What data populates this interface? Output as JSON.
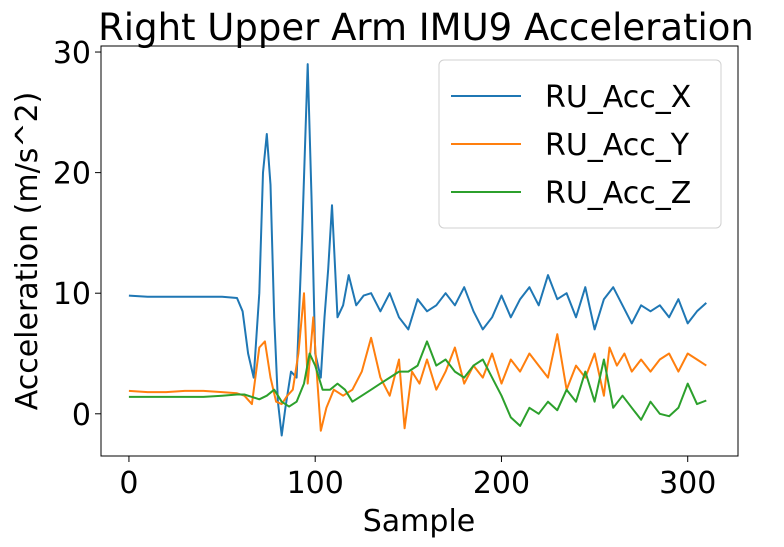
{
  "chart_data": {
    "type": "line",
    "title": "Right Upper Arm IMU9 Acceleration",
    "xlabel": "Sample",
    "ylabel": "Acceleration (m/s^2)",
    "xlim": [
      -15,
      327
    ],
    "ylim": [
      -3.5,
      30.5
    ],
    "xticks": [
      0,
      100,
      200,
      300
    ],
    "yticks": [
      0,
      10,
      20,
      30
    ],
    "grid": false,
    "legend_position": "top-right",
    "series": [
      {
        "name": "RU_Acc_X",
        "color": "#1f77b4",
        "points": [
          [
            0,
            9.8
          ],
          [
            10,
            9.7
          ],
          [
            20,
            9.7
          ],
          [
            30,
            9.7
          ],
          [
            40,
            9.7
          ],
          [
            50,
            9.7
          ],
          [
            58,
            9.6
          ],
          [
            61,
            8.5
          ],
          [
            64,
            5.0
          ],
          [
            67,
            3.0
          ],
          [
            70,
            10.0
          ],
          [
            72,
            20.0
          ],
          [
            74,
            23.2
          ],
          [
            76,
            19.0
          ],
          [
            78,
            8.0
          ],
          [
            80,
            1.0
          ],
          [
            82,
            -1.8
          ],
          [
            84,
            0.5
          ],
          [
            87,
            3.5
          ],
          [
            90,
            3.0
          ],
          [
            93,
            15.0
          ],
          [
            96,
            29.0
          ],
          [
            98,
            18.0
          ],
          [
            100,
            5.0
          ],
          [
            103,
            3.0
          ],
          [
            105,
            8.0
          ],
          [
            107,
            12.0
          ],
          [
            109,
            17.3
          ],
          [
            112,
            8.0
          ],
          [
            115,
            9.0
          ],
          [
            118,
            11.5
          ],
          [
            122,
            9.0
          ],
          [
            126,
            9.8
          ],
          [
            130,
            10.0
          ],
          [
            135,
            8.5
          ],
          [
            140,
            10.0
          ],
          [
            145,
            8.0
          ],
          [
            150,
            7.0
          ],
          [
            155,
            9.5
          ],
          [
            160,
            8.5
          ],
          [
            165,
            9.0
          ],
          [
            170,
            10.0
          ],
          [
            175,
            9.0
          ],
          [
            180,
            10.5
          ],
          [
            185,
            8.5
          ],
          [
            190,
            7.0
          ],
          [
            195,
            8.0
          ],
          [
            200,
            9.8
          ],
          [
            205,
            8.0
          ],
          [
            210,
            9.5
          ],
          [
            215,
            10.5
          ],
          [
            220,
            9.0
          ],
          [
            225,
            11.5
          ],
          [
            230,
            9.5
          ],
          [
            235,
            10.0
          ],
          [
            240,
            8.0
          ],
          [
            245,
            10.5
          ],
          [
            250,
            7.0
          ],
          [
            255,
            9.5
          ],
          [
            260,
            10.5
          ],
          [
            265,
            9.0
          ],
          [
            270,
            7.5
          ],
          [
            275,
            9.0
          ],
          [
            280,
            8.5
          ],
          [
            285,
            9.0
          ],
          [
            290,
            8.0
          ],
          [
            295,
            9.5
          ],
          [
            300,
            7.5
          ],
          [
            305,
            8.5
          ],
          [
            310,
            9.2
          ]
        ]
      },
      {
        "name": "RU_Acc_Y",
        "color": "#ff7f0e",
        "points": [
          [
            0,
            1.9
          ],
          [
            10,
            1.8
          ],
          [
            20,
            1.8
          ],
          [
            30,
            1.9
          ],
          [
            40,
            1.9
          ],
          [
            50,
            1.8
          ],
          [
            58,
            1.7
          ],
          [
            62,
            1.5
          ],
          [
            66,
            0.8
          ],
          [
            70,
            5.5
          ],
          [
            73,
            6.0
          ],
          [
            76,
            3.0
          ],
          [
            79,
            1.0
          ],
          [
            82,
            0.8
          ],
          [
            85,
            1.5
          ],
          [
            88,
            2.0
          ],
          [
            91,
            5.0
          ],
          [
            94,
            10.0
          ],
          [
            96,
            2.5
          ],
          [
            99,
            8.0
          ],
          [
            101,
            3.0
          ],
          [
            103,
            -1.4
          ],
          [
            106,
            0.5
          ],
          [
            110,
            2.0
          ],
          [
            115,
            1.5
          ],
          [
            120,
            2.0
          ],
          [
            125,
            3.5
          ],
          [
            130,
            6.3
          ],
          [
            135,
            3.0
          ],
          [
            140,
            1.5
          ],
          [
            145,
            4.5
          ],
          [
            148,
            -1.2
          ],
          [
            152,
            3.5
          ],
          [
            156,
            2.5
          ],
          [
            160,
            4.5
          ],
          [
            165,
            2.0
          ],
          [
            170,
            3.5
          ],
          [
            175,
            5.5
          ],
          [
            180,
            2.5
          ],
          [
            185,
            4.0
          ],
          [
            190,
            3.0
          ],
          [
            195,
            5.0
          ],
          [
            200,
            2.5
          ],
          [
            205,
            4.5
          ],
          [
            210,
            3.5
          ],
          [
            215,
            5.0
          ],
          [
            220,
            4.0
          ],
          [
            225,
            3.0
          ],
          [
            230,
            6.6
          ],
          [
            235,
            2.0
          ],
          [
            240,
            4.0
          ],
          [
            245,
            3.0
          ],
          [
            250,
            5.0
          ],
          [
            255,
            1.5
          ],
          [
            258,
            5.5
          ],
          [
            262,
            4.0
          ],
          [
            266,
            5.0
          ],
          [
            270,
            3.5
          ],
          [
            275,
            4.5
          ],
          [
            280,
            3.5
          ],
          [
            285,
            4.5
          ],
          [
            290,
            5.0
          ],
          [
            295,
            3.5
          ],
          [
            300,
            5.0
          ],
          [
            305,
            4.5
          ],
          [
            310,
            4.0
          ]
        ]
      },
      {
        "name": "RU_Acc_Z",
        "color": "#2ca02c",
        "points": [
          [
            0,
            1.4
          ],
          [
            10,
            1.4
          ],
          [
            20,
            1.4
          ],
          [
            30,
            1.4
          ],
          [
            40,
            1.4
          ],
          [
            50,
            1.5
          ],
          [
            58,
            1.6
          ],
          [
            62,
            1.6
          ],
          [
            66,
            1.4
          ],
          [
            70,
            1.2
          ],
          [
            74,
            1.5
          ],
          [
            78,
            2.0
          ],
          [
            82,
            1.0
          ],
          [
            86,
            0.6
          ],
          [
            90,
            1.0
          ],
          [
            94,
            2.5
          ],
          [
            97,
            5.0
          ],
          [
            100,
            4.0
          ],
          [
            104,
            2.0
          ],
          [
            108,
            2.0
          ],
          [
            112,
            2.5
          ],
          [
            116,
            2.0
          ],
          [
            120,
            1.0
          ],
          [
            125,
            1.5
          ],
          [
            130,
            2.0
          ],
          [
            135,
            2.5
          ],
          [
            140,
            3.0
          ],
          [
            145,
            3.5
          ],
          [
            150,
            3.5
          ],
          [
            155,
            4.0
          ],
          [
            160,
            6.0
          ],
          [
            165,
            4.0
          ],
          [
            170,
            4.5
          ],
          [
            175,
            3.5
          ],
          [
            180,
            3.0
          ],
          [
            185,
            4.0
          ],
          [
            190,
            4.5
          ],
          [
            195,
            3.0
          ],
          [
            200,
            1.5
          ],
          [
            205,
            -0.3
          ],
          [
            210,
            -1.0
          ],
          [
            215,
            0.5
          ],
          [
            220,
            0.0
          ],
          [
            225,
            1.0
          ],
          [
            230,
            0.3
          ],
          [
            235,
            2.0
          ],
          [
            240,
            1.0
          ],
          [
            245,
            3.5
          ],
          [
            250,
            1.0
          ],
          [
            255,
            4.5
          ],
          [
            260,
            0.5
          ],
          [
            265,
            1.5
          ],
          [
            270,
            0.5
          ],
          [
            275,
            -0.5
          ],
          [
            280,
            1.0
          ],
          [
            285,
            0.0
          ],
          [
            290,
            -0.2
          ],
          [
            295,
            0.5
          ],
          [
            300,
            2.5
          ],
          [
            305,
            0.8
          ],
          [
            310,
            1.1
          ]
        ]
      }
    ]
  }
}
